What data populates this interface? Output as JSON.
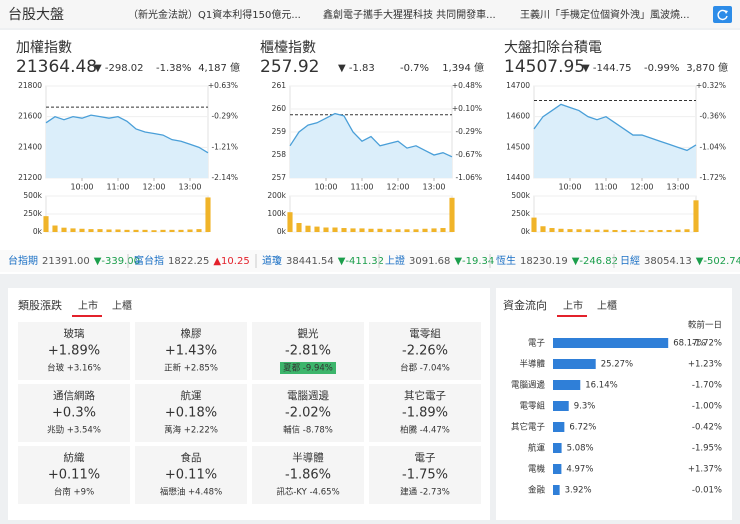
{
  "header": {
    "title": "台股大盤",
    "news": [
      "（新光金法說）Q1資本利得150億元...",
      "鑫創電子攜手大猩猩科技 共同開發車...",
      "王義川「手機定位個資外洩」風波燒..."
    ]
  },
  "indices": [
    {
      "title": "加權指數",
      "value": "21364.48",
      "change": "▼ -298.02",
      "percent": "-1.38%",
      "volume": "4,187 億",
      "color": "#1b9e4b",
      "chart": {
        "type": "line",
        "x": [
          9,
          9.25,
          9.5,
          9.75,
          10,
          10.25,
          10.5,
          10.75,
          11,
          11.25,
          11.5,
          11.75,
          12,
          12.25,
          12.5,
          12.75,
          13,
          13.25,
          13.5
        ],
        "values": [
          21560,
          21600,
          21580,
          21600,
          21590,
          21610,
          21600,
          21590,
          21600,
          21570,
          21520,
          21500,
          21490,
          21480,
          21450,
          21440,
          21420,
          21400,
          21364.48
        ],
        "xlim": [
          9,
          13.5
        ],
        "xticks": [
          {
            "value": 10,
            "label": "10:00"
          },
          {
            "value": 11,
            "label": "11:00"
          },
          {
            "value": 12,
            "label": "12:00"
          },
          {
            "value": 13,
            "label": "13:00"
          }
        ],
        "ylim": [
          21200,
          21800
        ],
        "yticks": [
          21800,
          21600,
          21400,
          21200
        ],
        "y2labels": [
          "+0.63%",
          "-0.29%",
          "-1.21%",
          "-2.14%"
        ],
        "reference": 21662.5,
        "line_color": "#4a9fd8",
        "area_color": "#dbeefa",
        "volume": {
          "type": "bar",
          "color": "#f0b429",
          "values": [
            220000,
            90000,
            60000,
            50000,
            45000,
            40000,
            40000,
            35000,
            35000,
            30000,
            30000,
            30000,
            25000,
            30000,
            30000,
            30000,
            35000,
            40000,
            480000
          ],
          "ylim": [
            0,
            500000
          ],
          "yticks": [
            {
              "value": 500000,
              "label": "500k"
            },
            {
              "value": 250000,
              "label": "250k"
            },
            {
              "value": 0,
              "label": "0k"
            }
          ]
        }
      }
    },
    {
      "title": "櫃檯指數",
      "value": "257.92",
      "change": "▼ -1.83",
      "percent": "-0.7%",
      "volume": "1,394 億",
      "color": "#1b9e4b",
      "chart": {
        "type": "line",
        "x": [
          9,
          9.25,
          9.5,
          9.75,
          10,
          10.25,
          10.5,
          10.75,
          11,
          11.25,
          11.5,
          11.75,
          12,
          12.25,
          12.5,
          12.75,
          13,
          13.25,
          13.5
        ],
        "values": [
          258.4,
          259.0,
          259.3,
          259.4,
          259.6,
          259.8,
          259.7,
          259.0,
          258.6,
          258.8,
          258.4,
          258.5,
          258.6,
          258.3,
          258.4,
          258.2,
          258.0,
          258.1,
          257.92
        ],
        "xlim": [
          9,
          13.5
        ],
        "xticks": [
          {
            "value": 10,
            "label": "10:00"
          },
          {
            "value": 11,
            "label": "11:00"
          },
          {
            "value": 12,
            "label": "12:00"
          },
          {
            "value": 13,
            "label": "13:00"
          }
        ],
        "ylim": [
          257,
          261
        ],
        "yticks": [
          261,
          260,
          259,
          258,
          257
        ],
        "y2labels": [
          "+0.48%",
          "+0.10%",
          "-0.29%",
          "-0.67%",
          "-1.06%"
        ],
        "reference": 259.75,
        "line_color": "#4a9fd8",
        "area_color": "#dbeefa",
        "volume": {
          "type": "bar",
          "color": "#f0b429",
          "values": [
            110000,
            50000,
            35000,
            30000,
            25000,
            25000,
            22000,
            20000,
            20000,
            18000,
            18000,
            15000,
            15000,
            15000,
            15000,
            18000,
            20000,
            22000,
            190000
          ],
          "ylim": [
            0,
            200000
          ],
          "yticks": [
            {
              "value": 200000,
              "label": "200k"
            },
            {
              "value": 100000,
              "label": "100k"
            },
            {
              "value": 0,
              "label": "0k"
            }
          ]
        }
      }
    },
    {
      "title": "大盤扣除台積電",
      "value": "14507.95",
      "change": "▼ -144.75",
      "percent": "-0.99%",
      "volume": "3,870 億",
      "color": "#1b9e4b",
      "chart": {
        "type": "line",
        "x": [
          9,
          9.25,
          9.5,
          9.75,
          10,
          10.25,
          10.5,
          10.75,
          11,
          11.25,
          11.5,
          11.75,
          12,
          12.25,
          12.5,
          12.75,
          13,
          13.25,
          13.5
        ],
        "values": [
          14560,
          14600,
          14620,
          14640,
          14630,
          14620,
          14600,
          14590,
          14600,
          14580,
          14560,
          14540,
          14540,
          14530,
          14520,
          14510,
          14500,
          14490,
          14507.95
        ],
        "xlim": [
          9,
          13.5
        ],
        "xticks": [
          {
            "value": 10,
            "label": "10:00"
          },
          {
            "value": 11,
            "label": "11:00"
          },
          {
            "value": 12,
            "label": "12:00"
          },
          {
            "value": 13,
            "label": "13:00"
          }
        ],
        "ylim": [
          14400,
          14700
        ],
        "yticks": [
          14700,
          14600,
          14500,
          14400
        ],
        "y2labels": [
          "+0.32%",
          "-0.36%",
          "-1.04%",
          "-1.72%"
        ],
        "reference": 14652.7,
        "line_color": "#4a9fd8",
        "area_color": "#dbeefa",
        "volume": {
          "type": "bar",
          "color": "#f0b429",
          "values": [
            200000,
            80000,
            55000,
            45000,
            40000,
            38000,
            36000,
            32000,
            32000,
            28000,
            28000,
            26000,
            24000,
            26000,
            28000,
            28000,
            32000,
            38000,
            440000
          ],
          "ylim": [
            0,
            500000
          ],
          "yticks": [
            {
              "value": 500000,
              "label": "500k"
            },
            {
              "value": 250000,
              "label": "250k"
            },
            {
              "value": 0,
              "label": "0k"
            }
          ]
        }
      }
    }
  ],
  "tickers": [
    {
      "name": "台指期",
      "value": "21391.00",
      "change": "▼-339.00",
      "color": "#1b9e4b"
    },
    {
      "name": "富台指",
      "value": "1822.25",
      "change": "▲10.25",
      "color": "#e3212b"
    },
    {
      "name": "道瓊",
      "value": "38441.54",
      "change": "▼-411.32",
      "color": "#1b9e4b"
    },
    {
      "name": "上證",
      "value": "3091.68",
      "change": "▼-19.34",
      "color": "#1b9e4b"
    },
    {
      "name": "恆生",
      "value": "18230.19",
      "change": "▼-246.82",
      "color": "#1b9e4b"
    },
    {
      "name": "日經",
      "value": "38054.13",
      "change": "▼-502.74",
      "color": "#1b9e4b"
    }
  ],
  "sectors": {
    "title": "類股漲跌",
    "tabs": [
      "上市",
      "上櫃"
    ],
    "items": [
      {
        "name": "玻璃",
        "change": "+1.89%",
        "leader": "台玻 +3.16%",
        "color": "#e3212b"
      },
      {
        "name": "橡膠",
        "change": "+1.43%",
        "leader": "正新 +2.85%",
        "color": "#e3212b"
      },
      {
        "name": "觀光",
        "change": "-2.81%",
        "leader": "夏都 -9.94%",
        "color": "#1b9e4b",
        "badge_color": "#3cb56b"
      },
      {
        "name": "電零組",
        "change": "-2.26%",
        "leader": "台郡 -7.04%",
        "color": "#1b9e4b"
      },
      {
        "name": "通信網路",
        "change": "+0.3%",
        "leader": "兆勁 +3.54%",
        "color": "#e3212b"
      },
      {
        "name": "航運",
        "change": "+0.18%",
        "leader": "萬海 +2.22%",
        "color": "#e3212b"
      },
      {
        "name": "電腦週邊",
        "change": "-2.02%",
        "leader": "輔信 -8.78%",
        "color": "#1b9e4b"
      },
      {
        "name": "其它電子",
        "change": "-1.89%",
        "leader": "柏騰 -4.47%",
        "color": "#1b9e4b"
      },
      {
        "name": "紡織",
        "change": "+0.11%",
        "leader": "台南 +9%",
        "color": "#e3212b"
      },
      {
        "name": "食品",
        "change": "+0.11%",
        "leader": "福懋油 +4.48%",
        "color": "#e3212b"
      },
      {
        "name": "半導體",
        "change": "-1.86%",
        "leader": "訊芯-KY -4.65%",
        "color": "#1b9e4b"
      },
      {
        "name": "電子",
        "change": "-1.75%",
        "leader": "建通 -2.73%",
        "color": "#1b9e4b"
      }
    ]
  },
  "flow": {
    "type": "bar",
    "title": "資金流向",
    "tabs": [
      "上市",
      "上櫃"
    ],
    "column": "較前一日",
    "bar_color": "#2f7fd8",
    "categories": [
      "電子",
      "半導體",
      "電腦週邊",
      "電零組",
      "其它電子",
      "航運",
      "電機",
      "金融"
    ],
    "values": [
      68.17,
      25.27,
      16.14,
      9.3,
      6.72,
      5.08,
      4.97,
      3.92
    ],
    "value_labels": [
      "68.17%",
      "25.27%",
      "16.14%",
      "9.3%",
      "6.72%",
      "5.08%",
      "4.97%",
      "3.92%"
    ],
    "changes": [
      "-1.72%",
      "+1.23%",
      "-1.70%",
      "-1.00%",
      "-0.42%",
      "-1.95%",
      "+1.37%",
      "-0.01%"
    ],
    "change_colors": [
      "#1b9e4b",
      "#e3212b",
      "#1b9e4b",
      "#1b9e4b",
      "#1b9e4b",
      "#1b9e4b",
      "#e3212b",
      "#1b9e4b"
    ]
  }
}
